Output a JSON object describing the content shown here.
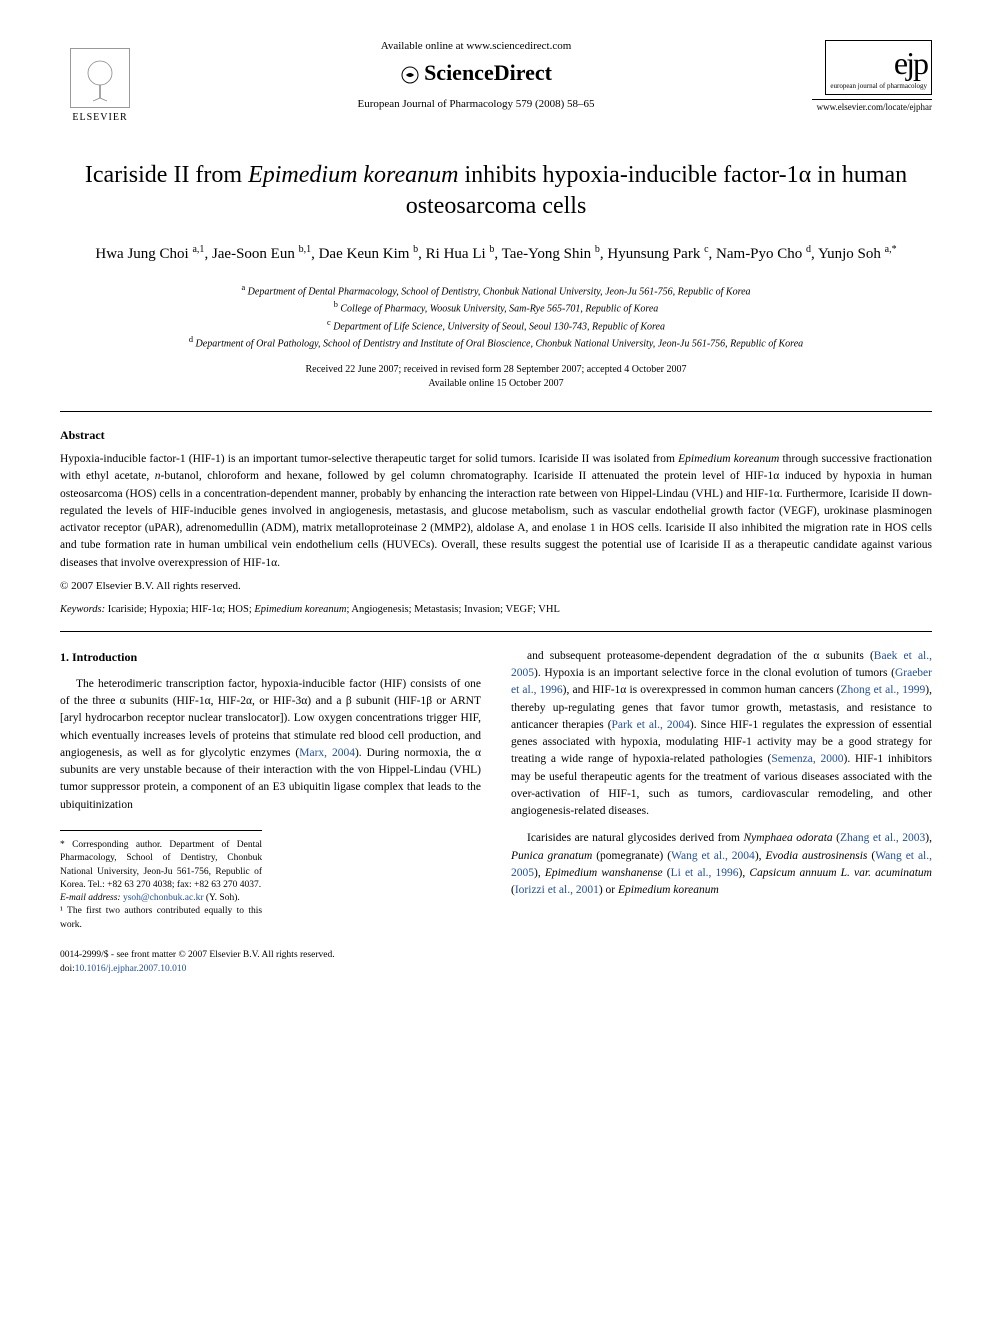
{
  "header": {
    "elsevier_label": "ELSEVIER",
    "available_text": "Available online at www.sciencedirect.com",
    "sciencedirect_label": "ScienceDirect",
    "journal_ref": "European Journal of Pharmacology 579 (2008) 58–65",
    "ejp_text": "ejp",
    "ejp_sub": "european journal of pharmacology",
    "journal_url": "www.elsevier.com/locate/ejphar"
  },
  "title_parts": {
    "pre": "Icariside II from ",
    "italic": "Epimedium koreanum",
    "post": " inhibits hypoxia-inducible factor-1α in human osteosarcoma cells"
  },
  "authors_html": "Hwa Jung Choi <sup>a,1</sup>, Jae-Soon Eun <sup>b,1</sup>, Dae Keun Kim <sup>b</sup>, Ri Hua Li <sup>b</sup>, Tae-Yong Shin <sup>b</sup>, Hyunsung Park <sup>c</sup>, Nam-Pyo Cho <sup>d</sup>, Yunjo Soh <sup>a,*</sup>",
  "affiliations": [
    {
      "sup": "a",
      "text": "Department of Dental Pharmacology, School of Dentistry, Chonbuk National University, Jeon-Ju 561-756, Republic of Korea"
    },
    {
      "sup": "b",
      "text": "College of Pharmacy, Woosuk University, Sam-Rye 565-701, Republic of Korea"
    },
    {
      "sup": "c",
      "text": "Department of Life Science, University of Seoul, Seoul 130-743, Republic of Korea"
    },
    {
      "sup": "d",
      "text": "Department of Oral Pathology, School of Dentistry and Institute of Oral Bioscience, Chonbuk National University, Jeon-Ju 561-756, Republic of Korea"
    }
  ],
  "dates": {
    "line1": "Received 22 June 2007; received in revised form 28 September 2007; accepted 4 October 2007",
    "line2": "Available online 15 October 2007"
  },
  "abstract": {
    "label": "Abstract",
    "text": "Hypoxia-inducible factor-1 (HIF-1) is an important tumor-selective therapeutic target for solid tumors. Icariside II was isolated from <span class=\"italic\">Epimedium koreanum</span> through successive fractionation with ethyl acetate, <span class=\"italic\">n</span>-butanol, chloroform and hexane, followed by gel column chromatography. Icariside II attenuated the protein level of HIF-1α induced by hypoxia in human osteosarcoma (HOS) cells in a concentration-dependent manner, probably by enhancing the interaction rate between von Hippel-Lindau (VHL) and HIF-1α. Furthermore, Icariside II down-regulated the levels of HIF-inducible genes involved in angiogenesis, metastasis, and glucose metabolism, such as vascular endothelial growth factor (VEGF), urokinase plasminogen activator receptor (uPAR), adrenomedullin (ADM), matrix metalloproteinase 2 (MMP2), aldolase A, and enolase 1 in HOS cells. Icariside II also inhibited the migration rate in HOS cells and tube formation rate in human umbilical vein endothelium cells (HUVECs). Overall, these results suggest the potential use of Icariside II as a therapeutic candidate against various diseases that involve overexpression of HIF-1α.",
    "copyright": "© 2007 Elsevier B.V. All rights reserved."
  },
  "keywords": {
    "label": "Keywords:",
    "text": "Icariside; Hypoxia; HIF-1α; HOS; <span class=\"italic\">Epimedium koreanum</span>; Angiogenesis; Metastasis; Invasion; VEGF; VHL"
  },
  "intro": {
    "heading": "1. Introduction",
    "col1_para1": "The heterodimeric transcription factor, hypoxia-inducible factor (HIF) consists of one of the three α subunits (HIF-1α, HIF-2α, or HIF-3α) and a β subunit (HIF-1β or ARNT [aryl hydrocarbon receptor nuclear translocator]). Low oxygen concentrations trigger HIF, which eventually increases levels of proteins that stimulate red blood cell production, and angiogenesis, as well as for glycolytic enzymes (<span class=\"cite\">Marx, 2004</span>). During normoxia, the α subunits are very unstable because of their interaction with the von Hippel-Lindau (VHL) tumor suppressor protein, a component of an E3 ubiquitin ligase complex that leads to the ubiquitinization",
    "col2_para1": "and subsequent proteasome-dependent degradation of the α subunits (<span class=\"cite\">Baek et al., 2005</span>). Hypoxia is an important selective force in the clonal evolution of tumors (<span class=\"cite\">Graeber et al., 1996</span>), and HIF-1α is overexpressed in common human cancers (<span class=\"cite\">Zhong et al., 1999</span>), thereby up-regulating genes that favor tumor growth, metastasis, and resistance to anticancer therapies (<span class=\"cite\">Park et al., 2004</span>). Since HIF-1 regulates the expression of essential genes associated with hypoxia, modulating HIF-1 activity may be a good strategy for treating a wide range of hypoxia-related pathologies (<span class=\"cite\">Semenza, 2000</span>). HIF-1 inhibitors may be useful therapeutic agents for the treatment of various diseases associated with the over-activation of HIF-1, such as tumors, cardiovascular remodeling, and other angiogenesis-related diseases.",
    "col2_para2": "Icarisides are natural glycosides derived from <span class=\"italic\">Nymphaea odorata</span> (<span class=\"cite\">Zhang et al., 2003</span>), <span class=\"italic\">Punica granatum</span> (pomegranate) (<span class=\"cite\">Wang et al., 2004</span>), <span class=\"italic\">Evodia austrosinensis</span> (<span class=\"cite\">Wang et al., 2005</span>), <span class=\"italic\">Epimedium wanshanense</span> (<span class=\"cite\">Li et al., 1996</span>), <span class=\"italic\">Capsicum annuum L. var. acuminatum</span> (<span class=\"cite\">Iorizzi et al., 2001</span>) or <span class=\"italic\">Epimedium koreanum</span>"
  },
  "footnotes": {
    "corresponding": "* Corresponding author. Department of Dental Pharmacology, School of Dentistry, Chonbuk National University, Jeon-Ju 561-756, Republic of Korea. Tel.: +82 63 270 4038; fax: +82 63 270 4037.",
    "email_label": "E-mail address:",
    "email": "ysoh@chonbuk.ac.kr",
    "email_name": "(Y. Soh).",
    "equal": "¹ The first two authors contributed equally to this work."
  },
  "footer": {
    "issn": "0014-2999/$ - see front matter © 2007 Elsevier B.V. All rights reserved.",
    "doi_label": "doi:",
    "doi": "10.1016/j.ejphar.2007.10.010"
  },
  "colors": {
    "cite": "#2050a0",
    "text": "#000000",
    "bg": "#ffffff"
  }
}
